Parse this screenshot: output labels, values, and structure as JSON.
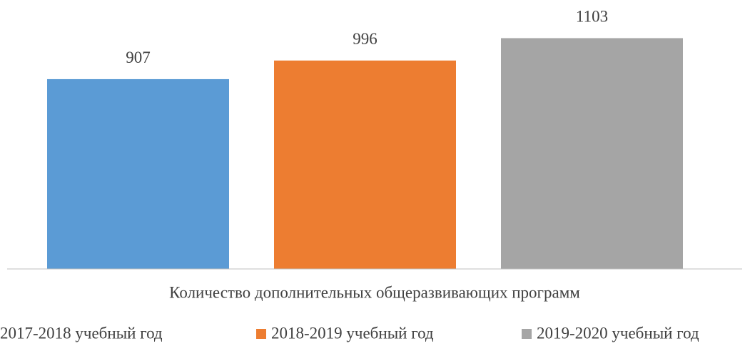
{
  "chart_data": {
    "type": "bar",
    "categories": [
      "Количество дополнительных общеразвивающих программ"
    ],
    "series": [
      {
        "name": "2017-2018 учебный год",
        "color": "#5b9bd5",
        "values": [
          907
        ]
      },
      {
        "name": "2018-2019 учебный год",
        "color": "#ed7d31",
        "values": [
          996
        ]
      },
      {
        "name": "2019-2020 учебный год",
        "color": "#a5a5a5",
        "values": [
          1103
        ]
      }
    ],
    "ylim": [
      0,
      1200
    ],
    "legend": "bottom"
  }
}
